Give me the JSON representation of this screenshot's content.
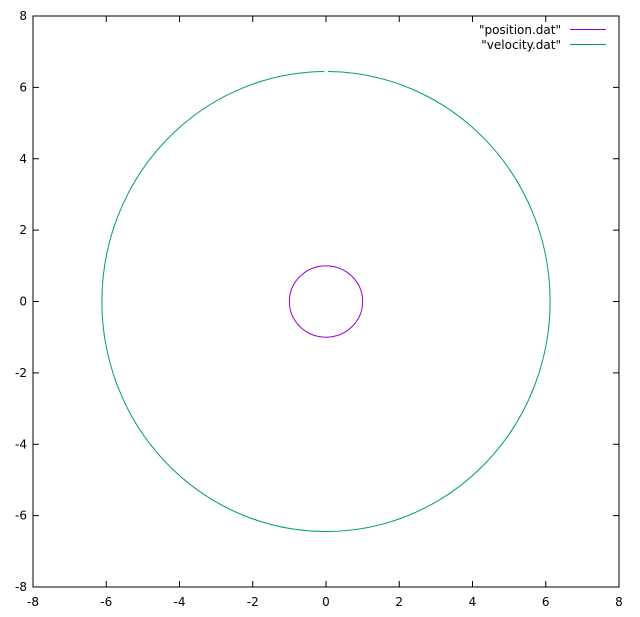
{
  "chart_data": {
    "type": "line",
    "title": "",
    "xlabel": "",
    "ylabel": "",
    "xlim": [
      -8,
      8
    ],
    "ylim": [
      -8,
      8
    ],
    "xticks": [
      -8,
      -6,
      -4,
      -2,
      0,
      2,
      4,
      6,
      8
    ],
    "yticks": [
      -8,
      -6,
      -4,
      -2,
      0,
      2,
      4,
      6,
      8
    ],
    "grid": false,
    "legend_position": "top-right",
    "series": [
      {
        "name": "\"position.dat\"",
        "color": "#9400d3",
        "shape": "circle",
        "center": [
          0,
          0
        ],
        "radius": 1.0
      },
      {
        "name": "\"velocity.dat\"",
        "color": "#009e73",
        "shape": "circle",
        "center": [
          0,
          0
        ],
        "radius": 6.28,
        "gap_at_top": true
      }
    ]
  }
}
